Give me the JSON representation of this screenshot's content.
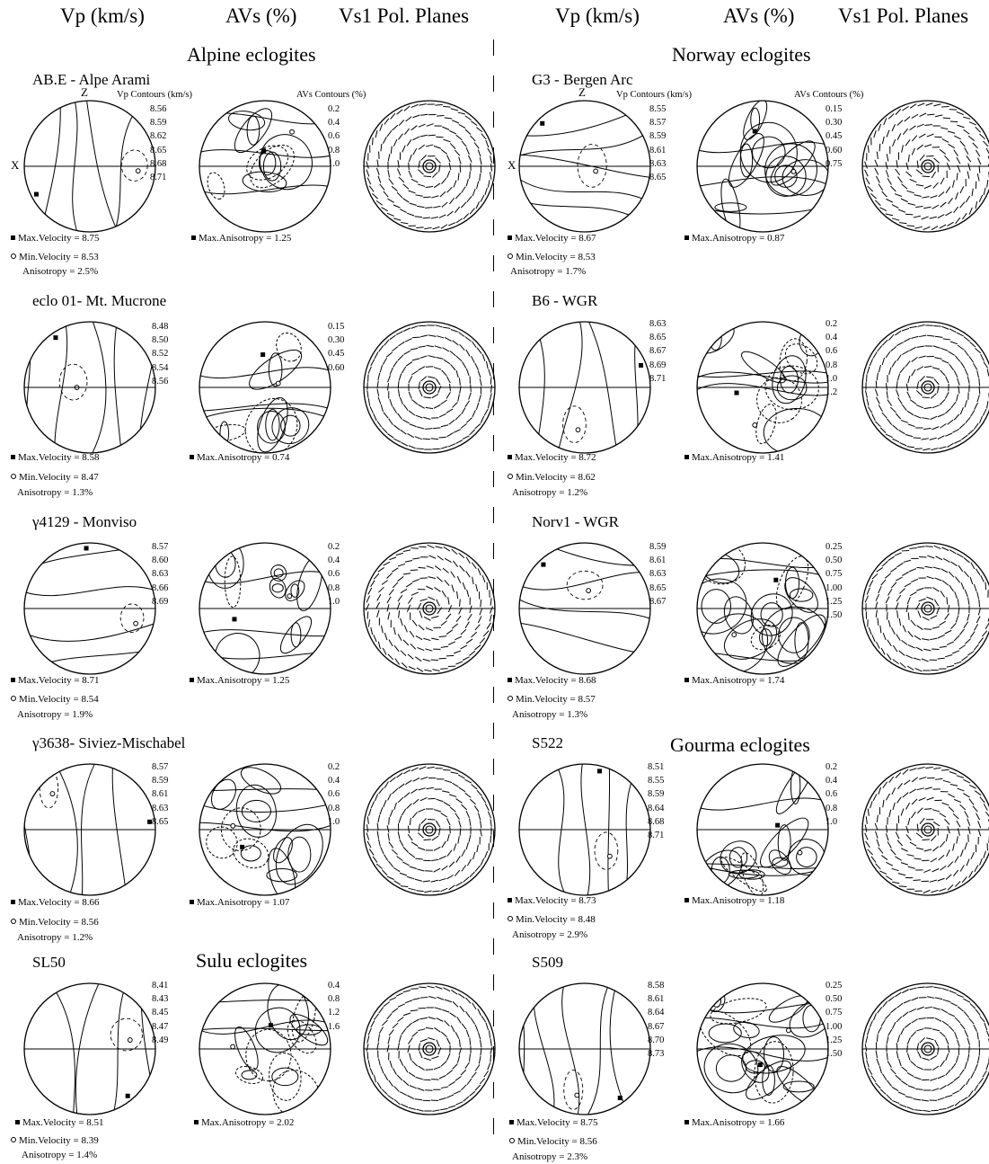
{
  "headers": {
    "vp": "Vp (km/s)",
    "avs": "AVs (%)",
    "vs1": "Vs1 Pol. Planes"
  },
  "groups": {
    "alpine": "Alpine eclogites",
    "norway": "Norway eclogites",
    "gourma": "Gourma eclogites",
    "sulu": "Sulu eclogites"
  },
  "axes": {
    "x": "X",
    "z": "Z"
  },
  "contour_heads": {
    "vp": "Vp  Contours (km/s)",
    "avs": "AVs Contours (%)"
  },
  "left": [
    {
      "title": "AB.E - Alpe Arami",
      "vp_scale": [
        "8.56",
        "8.59",
        "8.62",
        "8.65",
        "8.68",
        "8.71"
      ],
      "avs_scale": [
        "0.2",
        "0.4",
        "0.6",
        "0.8",
        "1.0"
      ],
      "max_vel": "Max.Velocity = 8.75",
      "min_vel": "Min.Velocity = 8.53",
      "anis": "Anisotropy =  2.5%",
      "max_anis": "Max.Anisotropy = 1.25"
    },
    {
      "title": "eclo 01- Mt. Mucrone",
      "vp_scale": [
        "8.48",
        "8.50",
        "8.52",
        "8.54",
        "8.56"
      ],
      "avs_scale": [
        "0.15",
        "0.30",
        "0.45",
        "0.60"
      ],
      "max_vel": "Max.Velocity = 8.58",
      "min_vel": "Min.Velocity = 8.47",
      "anis": "Anisotropy = 1.3%",
      "max_anis": "Max.Anisotropy = 0.74"
    },
    {
      "title": "γ4129 - Monviso",
      "vp_scale": [
        "8.57",
        "8.60",
        "8.63",
        "8.66",
        "8.69"
      ],
      "avs_scale": [
        "0.2",
        "0.4",
        "0.6",
        "0.8",
        "1.0"
      ],
      "max_vel": "Max.Velocity = 8.71",
      "min_vel": "Min.Velocity = 8.54",
      "anis": "Anisotropy = 1.9%",
      "max_anis": "Max.Anisotropy = 1.25"
    },
    {
      "title": "γ3638- Siviez-Mischabel",
      "vp_scale": [
        "8.57",
        "8.59",
        "8.61",
        "8.63",
        "8.65"
      ],
      "avs_scale": [
        "0.2",
        "0.4",
        "0.6",
        "0.8",
        "1.0"
      ],
      "max_vel": "Max.Velocity = 8.66",
      "min_vel": "Min.Velocity = 8.56",
      "anis": "Anisotropy = 1.2%",
      "max_anis": "Max.Anisotropy = 1.07"
    },
    {
      "title": "SL50",
      "vp_scale": [
        "8.41",
        "8.43",
        "8.45",
        "8.47",
        "8.49"
      ],
      "avs_scale": [
        "0.4",
        "0.8",
        "1.2",
        "1.6"
      ],
      "max_vel": "Max.Velocity = 8.51",
      "min_vel": "Min.Velocity = 8.39",
      "anis": "Anisotropy =  1.4%",
      "max_anis": "Max.Anisotropy = 2.02"
    }
  ],
  "right": [
    {
      "title": "G3 - Bergen Arc",
      "vp_scale": [
        "8.55",
        "8.57",
        "8.59",
        "8.61",
        "8.63",
        "8.65"
      ],
      "avs_scale": [
        "0.15",
        "0.30",
        "0.45",
        "0.60",
        "0.75"
      ],
      "max_vel": "Max.Velocity = 8.67",
      "min_vel": "Min.Velocity = 8.53",
      "anis": "Anisotropy =  1.7%",
      "max_anis": "Max.Anisotropy = 0.87"
    },
    {
      "title": "B6 - WGR",
      "vp_scale": [
        "8.63",
        "8.65",
        "8.67",
        "8.69",
        "8.71"
      ],
      "avs_scale": [
        "0.2",
        "0.4",
        "0.6",
        "0.8",
        "1.0",
        "1.2"
      ],
      "max_vel": "Max.Velocity = 8.72",
      "min_vel": "Min.Velocity = 8.62",
      "anis": "Anisotropy = 1.2%",
      "max_anis": "Max.Anisotropy = 1.41"
    },
    {
      "title": "Norv1 - WGR",
      "vp_scale": [
        "8.59",
        "8.61",
        "8.63",
        "8.65",
        "8.67"
      ],
      "avs_scale": [
        "0.25",
        "0.50",
        "0.75",
        "1.00",
        "1.25",
        "1.50"
      ],
      "max_vel": "Max.Velocity = 8.68",
      "min_vel": "Min.Velocity = 8.57",
      "anis": "Anisotropy = 1.3%",
      "max_anis": "Max.Anisotropy = 1.74"
    },
    {
      "title": "S522",
      "vp_scale": [
        "8.51",
        "8.55",
        "8.59",
        "8.64",
        "8.68",
        "8.71"
      ],
      "avs_scale": [
        "0.2",
        "0.4",
        "0.6",
        "0.8",
        "1.0"
      ],
      "max_vel": "Max.Velocity = 8.73",
      "min_vel": "Min.Velocity = 8.48",
      "anis": "Anisotropy = 2.9%",
      "max_anis": "Max.Anisotropy = 1.18"
    },
    {
      "title": "S509",
      "vp_scale": [
        "8.58",
        "8.61",
        "8.64",
        "8.67",
        "8.70",
        "8.73"
      ],
      "avs_scale": [
        "0.25",
        "0.50",
        "0.75",
        "1.00",
        "1.25",
        "1.50"
      ],
      "max_vel": "Max.Velocity = 8.75",
      "min_vel": "Min.Velocity = 8.56",
      "anis": "Anisotropy = 2.3%",
      "max_anis": "Max.Anisotropy = 1.66"
    }
  ]
}
